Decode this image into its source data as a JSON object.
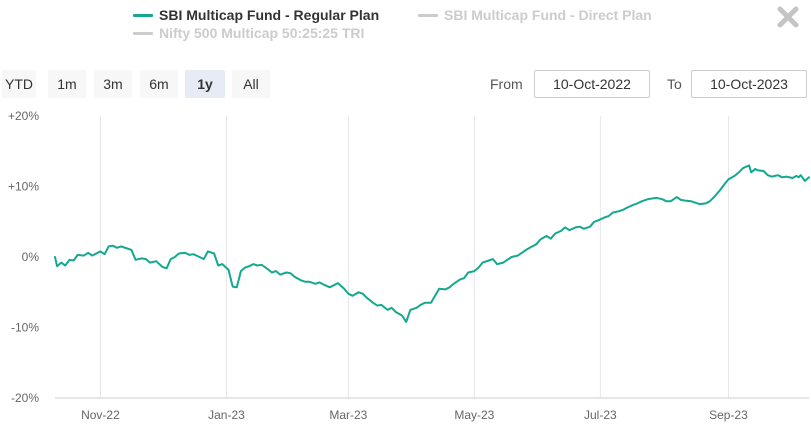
{
  "legend": {
    "items": [
      {
        "label": "SBI Multicap Fund - Regular Plan",
        "color": "#14a88f",
        "visible": true
      },
      {
        "label": "SBI Multicap Fund - Direct Plan",
        "color": "#cccccc",
        "visible": false
      },
      {
        "label": "Nifty 500 Multicap 50:25:25 TRI",
        "color": "#cccccc",
        "visible": false
      }
    ]
  },
  "controls": {
    "ranges": [
      {
        "label": "YTD",
        "active": false
      },
      {
        "label": "1m",
        "active": false
      },
      {
        "label": "3m",
        "active": false
      },
      {
        "label": "6m",
        "active": false
      },
      {
        "label": "1y",
        "active": true
      },
      {
        "label": "All",
        "active": false
      }
    ],
    "from_label": "From",
    "from_value": "10-Oct-2022",
    "to_label": "To",
    "to_value": "10-Oct-2023"
  },
  "chart_data": {
    "type": "line",
    "x_type": "date",
    "x_range": [
      "2022-10-10",
      "2023-10-10"
    ],
    "ylim": [
      -20,
      20
    ],
    "y_ticks": [
      {
        "value": 20,
        "label": "+20%"
      },
      {
        "value": 10,
        "label": "+10%"
      },
      {
        "value": 0,
        "label": "0%"
      },
      {
        "value": -10,
        "label": "-10%"
      },
      {
        "value": -20,
        "label": "-20%"
      }
    ],
    "x_ticks": [
      {
        "date": "2022-11-01",
        "label": "Nov-22"
      },
      {
        "date": "2023-01-01",
        "label": "Jan-23"
      },
      {
        "date": "2023-03-01",
        "label": "Mar-23"
      },
      {
        "date": "2023-05-01",
        "label": "May-23"
      },
      {
        "date": "2023-07-01",
        "label": "Jul-23"
      },
      {
        "date": "2023-09-01",
        "label": "Sep-23"
      }
    ],
    "grid": {
      "vertical": true,
      "horizontal": false
    },
    "series": [
      {
        "name": "SBI Multicap Fund - Regular Plan",
        "color": "#14a88f",
        "points": [
          [
            "2022-10-10",
            0.0
          ],
          [
            "2022-10-11",
            -1.3
          ],
          [
            "2022-10-13",
            -0.8
          ],
          [
            "2022-10-15",
            -1.2
          ],
          [
            "2022-10-17",
            -0.4
          ],
          [
            "2022-10-19",
            -0.5
          ],
          [
            "2022-10-21",
            0.3
          ],
          [
            "2022-10-24",
            0.2
          ],
          [
            "2022-10-26",
            0.6
          ],
          [
            "2022-10-28",
            0.2
          ],
          [
            "2022-11-01",
            0.8
          ],
          [
            "2022-11-03",
            0.4
          ],
          [
            "2022-11-05",
            1.5
          ],
          [
            "2022-11-07",
            1.6
          ],
          [
            "2022-11-09",
            1.3
          ],
          [
            "2022-11-11",
            1.5
          ],
          [
            "2022-11-14",
            1.2
          ],
          [
            "2022-11-16",
            1.0
          ],
          [
            "2022-11-18",
            -0.4
          ],
          [
            "2022-11-21",
            -0.2
          ],
          [
            "2022-11-23",
            -0.3
          ],
          [
            "2022-11-25",
            -0.8
          ],
          [
            "2022-11-28",
            -0.6
          ],
          [
            "2022-12-01",
            -1.4
          ],
          [
            "2022-12-03",
            -1.6
          ],
          [
            "2022-12-05",
            -0.3
          ],
          [
            "2022-12-07",
            0.0
          ],
          [
            "2022-12-09",
            0.5
          ],
          [
            "2022-12-12",
            0.6
          ],
          [
            "2022-12-14",
            0.3
          ],
          [
            "2022-12-16",
            0.4
          ],
          [
            "2022-12-19",
            0.0
          ],
          [
            "2022-12-21",
            -0.3
          ],
          [
            "2022-12-23",
            0.8
          ],
          [
            "2022-12-26",
            0.5
          ],
          [
            "2022-12-28",
            -1.2
          ],
          [
            "2022-12-30",
            -1.0
          ],
          [
            "2023-01-02",
            -1.8
          ],
          [
            "2023-01-04",
            -4.2
          ],
          [
            "2023-01-06",
            -4.3
          ],
          [
            "2023-01-08",
            -2.0
          ],
          [
            "2023-01-10",
            -1.5
          ],
          [
            "2023-01-12",
            -1.3
          ],
          [
            "2023-01-14",
            -1.0
          ],
          [
            "2023-01-16",
            -1.2
          ],
          [
            "2023-01-18",
            -1.1
          ],
          [
            "2023-01-20",
            -1.5
          ],
          [
            "2023-01-23",
            -2.2
          ],
          [
            "2023-01-25",
            -2.0
          ],
          [
            "2023-01-27",
            -2.5
          ],
          [
            "2023-01-30",
            -2.2
          ],
          [
            "2023-02-01",
            -2.3
          ],
          [
            "2023-02-03",
            -2.8
          ],
          [
            "2023-02-06",
            -3.3
          ],
          [
            "2023-02-08",
            -3.5
          ],
          [
            "2023-02-10",
            -3.5
          ],
          [
            "2023-02-13",
            -3.8
          ],
          [
            "2023-02-15",
            -3.6
          ],
          [
            "2023-02-17",
            -3.9
          ],
          [
            "2023-02-20",
            -4.3
          ],
          [
            "2023-02-22",
            -4.0
          ],
          [
            "2023-02-24",
            -3.7
          ],
          [
            "2023-02-27",
            -4.5
          ],
          [
            "2023-03-01",
            -5.2
          ],
          [
            "2023-03-03",
            -5.5
          ],
          [
            "2023-03-06",
            -5.0
          ],
          [
            "2023-03-08",
            -5.2
          ],
          [
            "2023-03-10",
            -5.8
          ],
          [
            "2023-03-13",
            -6.5
          ],
          [
            "2023-03-15",
            -6.9
          ],
          [
            "2023-03-17",
            -6.8
          ],
          [
            "2023-03-20",
            -7.5
          ],
          [
            "2023-03-22",
            -7.2
          ],
          [
            "2023-03-24",
            -7.8
          ],
          [
            "2023-03-27",
            -8.3
          ],
          [
            "2023-03-29",
            -9.2
          ],
          [
            "2023-03-31",
            -7.5
          ],
          [
            "2023-04-03",
            -7.2
          ],
          [
            "2023-04-05",
            -6.8
          ],
          [
            "2023-04-07",
            -6.5
          ],
          [
            "2023-04-10",
            -6.5
          ],
          [
            "2023-04-12",
            -5.5
          ],
          [
            "2023-04-14",
            -4.5
          ],
          [
            "2023-04-17",
            -4.6
          ],
          [
            "2023-04-19",
            -4.3
          ],
          [
            "2023-04-21",
            -3.8
          ],
          [
            "2023-04-24",
            -3.2
          ],
          [
            "2023-04-26",
            -3.0
          ],
          [
            "2023-04-28",
            -2.2
          ],
          [
            "2023-05-01",
            -2.0
          ],
          [
            "2023-05-03",
            -1.5
          ],
          [
            "2023-05-05",
            -0.8
          ],
          [
            "2023-05-08",
            -0.5
          ],
          [
            "2023-05-10",
            -0.3
          ],
          [
            "2023-05-12",
            -1.0
          ],
          [
            "2023-05-15",
            -0.8
          ],
          [
            "2023-05-17",
            -0.4
          ],
          [
            "2023-05-19",
            0.0
          ],
          [
            "2023-05-22",
            0.2
          ],
          [
            "2023-05-24",
            0.6
          ],
          [
            "2023-05-26",
            1.0
          ],
          [
            "2023-05-29",
            1.5
          ],
          [
            "2023-05-31",
            1.8
          ],
          [
            "2023-06-02",
            2.5
          ],
          [
            "2023-06-05",
            3.0
          ],
          [
            "2023-06-07",
            2.6
          ],
          [
            "2023-06-09",
            3.3
          ],
          [
            "2023-06-12",
            3.7
          ],
          [
            "2023-06-14",
            4.2
          ],
          [
            "2023-06-16",
            3.8
          ],
          [
            "2023-06-19",
            4.2
          ],
          [
            "2023-06-21",
            4.3
          ],
          [
            "2023-06-23",
            4.0
          ],
          [
            "2023-06-26",
            4.3
          ],
          [
            "2023-06-28",
            5.0
          ],
          [
            "2023-06-30",
            5.2
          ],
          [
            "2023-07-03",
            5.6
          ],
          [
            "2023-07-05",
            5.8
          ],
          [
            "2023-07-07",
            6.3
          ],
          [
            "2023-07-10",
            6.5
          ],
          [
            "2023-07-12",
            6.7
          ],
          [
            "2023-07-14",
            7.0
          ],
          [
            "2023-07-17",
            7.4
          ],
          [
            "2023-07-19",
            7.6
          ],
          [
            "2023-07-21",
            7.9
          ],
          [
            "2023-07-24",
            8.2
          ],
          [
            "2023-07-26",
            8.3
          ],
          [
            "2023-07-28",
            8.4
          ],
          [
            "2023-07-31",
            8.2
          ],
          [
            "2023-08-02",
            7.9
          ],
          [
            "2023-08-04",
            7.9
          ],
          [
            "2023-08-07",
            8.5
          ],
          [
            "2023-08-09",
            8.1
          ],
          [
            "2023-08-11",
            8.0
          ],
          [
            "2023-08-14",
            7.9
          ],
          [
            "2023-08-16",
            7.7
          ],
          [
            "2023-08-18",
            7.5
          ],
          [
            "2023-08-21",
            7.6
          ],
          [
            "2023-08-23",
            7.9
          ],
          [
            "2023-08-25",
            8.5
          ],
          [
            "2023-08-28",
            9.5
          ],
          [
            "2023-08-30",
            10.3
          ],
          [
            "2023-09-01",
            11.0
          ],
          [
            "2023-09-04",
            11.5
          ],
          [
            "2023-09-06",
            12.0
          ],
          [
            "2023-09-08",
            12.6
          ],
          [
            "2023-09-11",
            13.0
          ],
          [
            "2023-09-12",
            12.0
          ],
          [
            "2023-09-14",
            12.5
          ],
          [
            "2023-09-15",
            12.3
          ],
          [
            "2023-09-18",
            12.2
          ],
          [
            "2023-09-20",
            11.6
          ],
          [
            "2023-09-22",
            11.4
          ],
          [
            "2023-09-25",
            11.6
          ],
          [
            "2023-09-27",
            11.3
          ],
          [
            "2023-09-29",
            11.4
          ],
          [
            "2023-10-02",
            11.2
          ],
          [
            "2023-10-04",
            11.5
          ],
          [
            "2023-10-05",
            11.3
          ],
          [
            "2023-10-06",
            11.6
          ],
          [
            "2023-10-08",
            10.8
          ],
          [
            "2023-10-10",
            11.3
          ]
        ]
      }
    ]
  }
}
